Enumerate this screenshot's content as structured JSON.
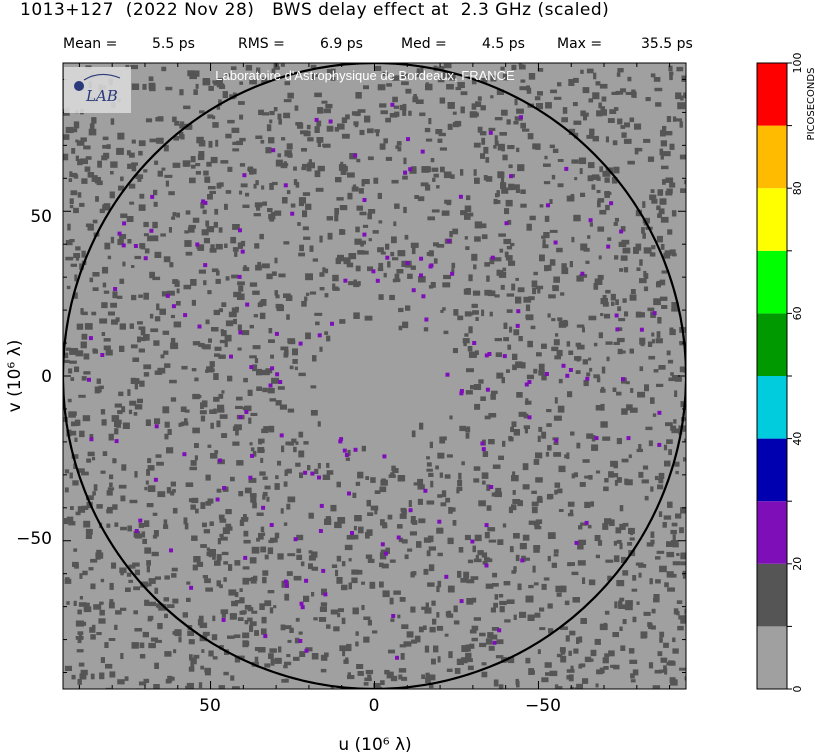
{
  "title": "1013+127  (2022 Nov 28)   BWS delay effect at  2.3 GHz (scaled)",
  "stats": {
    "mean_label": "Mean =",
    "mean_value": "5.5 ps",
    "rms_label": "RMS =",
    "rms_value": "6.9 ps",
    "med_label": "Med =",
    "med_value": "4.5 ps",
    "max_label": "Max =",
    "max_value": "35.5 ps"
  },
  "watermark": "Laboratoire d'Astrophysique de Bordeaux, FRANCE",
  "logo_text": "LAB",
  "chart_data": {
    "type": "heatmap",
    "title": "1013+127  (2022 Nov 28)   BWS delay effect at  2.3 GHz (scaled)",
    "xlabel": "u  (10⁶ λ)",
    "ylabel": "v  (10⁶ λ)",
    "x_ticks": [
      "50",
      "0",
      "−50"
    ],
    "y_ticks": [
      "50",
      "0",
      "−50"
    ],
    "xlim": [
      95,
      -95
    ],
    "ylim": [
      -95,
      95
    ],
    "circle_radius": 95,
    "colorbar": {
      "label": "PICOSECONDS",
      "ticks": [
        "0",
        "20",
        "40",
        "60",
        "80",
        "100"
      ],
      "range": [
        0,
        100
      ],
      "bins": [
        {
          "from": 0,
          "to": 10,
          "color": "#a0a0a0"
        },
        {
          "from": 10,
          "to": 20,
          "color": "#555555"
        },
        {
          "from": 20,
          "to": 30,
          "color": "#7e0fb8"
        },
        {
          "from": 30,
          "to": 40,
          "color": "#0000b0"
        },
        {
          "from": 40,
          "to": 50,
          "color": "#00ccdd"
        },
        {
          "from": 50,
          "to": 60,
          "color": "#009900"
        },
        {
          "from": 60,
          "to": 70,
          "color": "#00ff00"
        },
        {
          "from": 70,
          "to": 80,
          "color": "#ffff00"
        },
        {
          "from": 80,
          "to": 90,
          "color": "#ffbb00"
        },
        {
          "from": 90,
          "to": 100,
          "color": "#ff0000"
        }
      ]
    },
    "statistics_ps": {
      "mean": 5.5,
      "rms": 6.9,
      "median": 4.5,
      "max": 35.5
    }
  }
}
